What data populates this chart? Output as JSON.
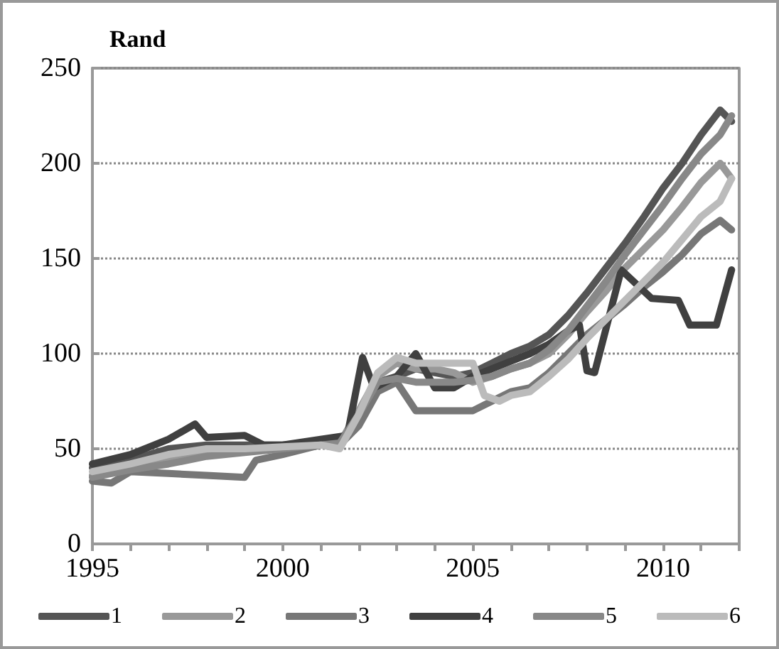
{
  "chart_data": {
    "type": "line",
    "ylabel": "Rand",
    "xlim": [
      1995,
      2012
    ],
    "ylim": [
      0,
      250
    ],
    "xticks": [
      1995,
      {
        "value": 1996,
        "label": null
      },
      {
        "value": 1997,
        "label": null
      },
      {
        "value": 1998,
        "label": null
      },
      {
        "value": 1999,
        "label": null
      },
      2000,
      {
        "value": 2001,
        "label": null
      },
      {
        "value": 2002,
        "label": null
      },
      {
        "value": 2003,
        "label": null
      },
      {
        "value": 2004,
        "label": null
      },
      2005,
      {
        "value": 2006,
        "label": null
      },
      {
        "value": 2007,
        "label": null
      },
      {
        "value": 2008,
        "label": null
      },
      {
        "value": 2009,
        "label": null
      },
      2010,
      {
        "value": 2011,
        "label": null
      },
      {
        "value": 2012,
        "label": null
      }
    ],
    "yticks": [
      0,
      50,
      100,
      150,
      200,
      250
    ],
    "grid": "y",
    "legend": "bottom",
    "marker": "none",
    "line_style": "solid",
    "series": [
      {
        "name": "1",
        "color": "#555555",
        "x": [
          1995,
          1996,
          1997,
          1998,
          1999,
          2000,
          2001,
          2001.5,
          2002,
          2002.5,
          2003,
          2003.5,
          2004,
          2004.5,
          2005,
          2005.5,
          2006,
          2006.5,
          2007,
          2007.5,
          2008,
          2008.5,
          2009,
          2009.5,
          2010,
          2010.5,
          2011,
          2011.5,
          2011.8
        ],
        "values": [
          40,
          44,
          50,
          52,
          52,
          52,
          53,
          52,
          65,
          85,
          88,
          92,
          90,
          88,
          90,
          95,
          100,
          104,
          110,
          120,
          132,
          145,
          158,
          172,
          187,
          200,
          215,
          228,
          222
        ]
      },
      {
        "name": "2",
        "color": "#999999",
        "x": [
          1995,
          1996,
          1997,
          1998,
          1999,
          2000,
          2001,
          2001.5,
          2002,
          2002.5,
          2003,
          2003.5,
          2004,
          2004.5,
          2005,
          2005.5,
          2006,
          2006.5,
          2007,
          2007.5,
          2008,
          2008.5,
          2009,
          2009.5,
          2010,
          2010.5,
          2011,
          2011.5,
          2011.8
        ],
        "values": [
          36,
          40,
          45,
          48,
          50,
          50,
          52,
          53,
          70,
          88,
          95,
          92,
          92,
          90,
          85,
          88,
          92,
          95,
          100,
          110,
          122,
          133,
          145,
          155,
          165,
          177,
          190,
          200,
          192
        ]
      },
      {
        "name": "3",
        "color": "#777777",
        "x": [
          1995,
          1995.5,
          1996,
          1997,
          1998,
          1999,
          1999.3,
          2000,
          2001,
          2001.5,
          2002,
          2002.5,
          2003,
          2003.5,
          2004,
          2005,
          2005.5,
          2006,
          2006.5,
          2007,
          2007.5,
          2008,
          2008.5,
          2009,
          2009.5,
          2010,
          2010.5,
          2011,
          2011.5,
          2011.8
        ],
        "values": [
          33,
          32,
          38,
          37,
          36,
          35,
          44,
          47,
          52,
          52,
          62,
          80,
          85,
          70,
          70,
          70,
          75,
          80,
          82,
          90,
          100,
          110,
          118,
          126,
          135,
          143,
          152,
          163,
          170,
          165
        ]
      },
      {
        "name": "4",
        "color": "#404040",
        "x": [
          1995,
          1996,
          1997,
          1997.7,
          1998,
          1999,
          1999.5,
          2000,
          2001,
          2001.7,
          2002.1,
          2002.4,
          2003,
          2003.5,
          2004,
          2004.5,
          2005,
          2005.5,
          2006,
          2006.5,
          2007,
          2007.5,
          2007.8,
          2008,
          2008.2,
          2008.9,
          2009.7,
          2010.4,
          2010.7,
          2011.4,
          2011.8
        ],
        "values": [
          42,
          47,
          55,
          63,
          56,
          57,
          52,
          52,
          55,
          57,
          98,
          82,
          88,
          100,
          82,
          82,
          88,
          92,
          96,
          100,
          105,
          112,
          115,
          91,
          90,
          144,
          129,
          128,
          115,
          115,
          144
        ]
      },
      {
        "name": "5",
        "color": "#888888",
        "x": [
          1995,
          1996,
          1997,
          1998,
          1999,
          2000,
          2001,
          2001.5,
          2002,
          2002.5,
          2003,
          2003.5,
          2004,
          2004.5,
          2005,
          2005.5,
          2006,
          2006.5,
          2007,
          2007.5,
          2008,
          2008.5,
          2009,
          2009.5,
          2010,
          2010.5,
          2011,
          2011.5,
          2011.8
        ],
        "values": [
          35,
          39,
          42,
          46,
          48,
          50,
          52,
          53,
          68,
          85,
          87,
          85,
          85,
          85,
          86,
          88,
          92,
          95,
          102,
          112,
          125,
          138,
          152,
          165,
          178,
          192,
          205,
          215,
          225
        ]
      },
      {
        "name": "6",
        "color": "#bbbbbb",
        "x": [
          1995,
          1996,
          1997,
          1998,
          1999,
          2000,
          2001,
          2001.5,
          2002,
          2002.5,
          2003,
          2003.5,
          2004,
          2004.5,
          2005,
          2005.3,
          2005.7,
          2006,
          2006.5,
          2007,
          2007.5,
          2008,
          2008.5,
          2009,
          2009.5,
          2010,
          2010.5,
          2011,
          2011.5,
          2011.8
        ],
        "values": [
          38,
          42,
          47,
          50,
          50,
          51,
          52,
          50,
          68,
          90,
          98,
          95,
          95,
          95,
          95,
          78,
          75,
          78,
          80,
          88,
          97,
          108,
          118,
          128,
          138,
          148,
          160,
          172,
          180,
          192
        ]
      }
    ]
  }
}
